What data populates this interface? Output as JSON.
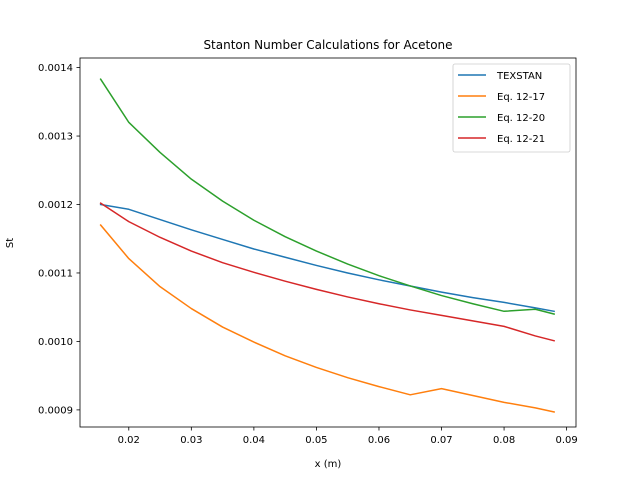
{
  "chart_data": {
    "type": "line",
    "title": "Stanton Number Calculations for Acetone",
    "xlabel": "x (m)",
    "ylabel": "St",
    "xlim": [
      0.0122,
      0.0915
    ],
    "ylim": [
      0.000875,
      0.001414
    ],
    "x_ticks": [
      0.02,
      0.03,
      0.04,
      0.05,
      0.06,
      0.07,
      0.08,
      0.09
    ],
    "x_tick_labels": [
      "0.02",
      "0.03",
      "0.04",
      "0.05",
      "0.06",
      "0.07",
      "0.08",
      "0.09"
    ],
    "y_ticks": [
      0.0009,
      0.001,
      0.0011,
      0.0012,
      0.0013,
      0.0014
    ],
    "y_tick_labels": [
      "0.0009",
      "0.0010",
      "0.0011",
      "0.0012",
      "0.0013",
      "0.0014"
    ],
    "grid": false,
    "legend_position": "top-right",
    "x": [
      0.0155,
      0.02,
      0.025,
      0.03,
      0.035,
      0.04,
      0.045,
      0.05,
      0.055,
      0.06,
      0.065,
      0.07,
      0.075,
      0.08,
      0.085,
      0.088
    ],
    "series": [
      {
        "name": "TEXSTAN",
        "color": "#1f77b4",
        "values": [
          0.0012,
          0.001193,
          0.001178,
          0.001163,
          0.001149,
          0.001135,
          0.001123,
          0.001111,
          0.0011,
          0.00109,
          0.001081,
          0.001072,
          0.001064,
          0.001057,
          0.001049,
          0.001044
        ]
      },
      {
        "name": "Eq. 12-17",
        "color": "#ff7f0e",
        "values": [
          0.00117,
          0.001121,
          0.00108,
          0.001048,
          0.001021,
          0.000999,
          0.000979,
          0.000962,
          0.000947,
          0.000934,
          0.000922,
          0.000931,
          0.000921,
          0.000911,
          0.000903,
          0.000897
        ]
      },
      {
        "name": "Eq. 12-20",
        "color": "#2ca02c",
        "values": [
          0.001383,
          0.00132,
          0.001276,
          0.001237,
          0.001205,
          0.001177,
          0.001153,
          0.001132,
          0.001113,
          0.001096,
          0.001081,
          0.001067,
          0.001055,
          0.001044,
          0.001047,
          0.00104
        ]
      },
      {
        "name": "Eq. 12-21",
        "color": "#d62728",
        "values": [
          0.001202,
          0.001175,
          0.001152,
          0.001132,
          0.001115,
          0.001101,
          0.001088,
          0.001076,
          0.001065,
          0.001055,
          0.001046,
          0.001038,
          0.00103,
          0.001022,
          0.001008,
          0.001001
        ]
      }
    ]
  }
}
